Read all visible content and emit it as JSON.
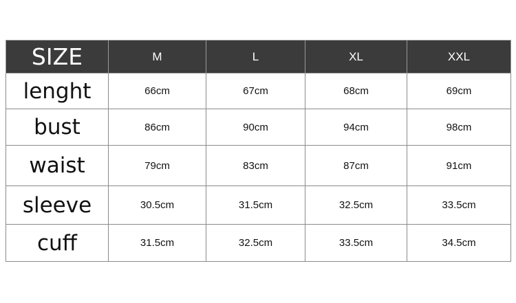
{
  "size_chart": {
    "header_label": "SIZE",
    "sizes": [
      "M",
      "L",
      "XL",
      "XXL"
    ],
    "rows": [
      {
        "label": "lenght",
        "values": [
          "66cm",
          "67cm",
          "68cm",
          "69cm"
        ]
      },
      {
        "label": "bust",
        "values": [
          "86cm",
          "90cm",
          "94cm",
          "98cm"
        ]
      },
      {
        "label": "waist",
        "values": [
          "79cm",
          "83cm",
          "87cm",
          "91cm"
        ]
      },
      {
        "label": "sleeve",
        "values": [
          "30.5cm",
          "31.5cm",
          "32.5cm",
          "33.5cm"
        ]
      },
      {
        "label": "cuff",
        "values": [
          "31.5cm",
          "32.5cm",
          "33.5cm",
          "34.5cm"
        ]
      }
    ],
    "colors": {
      "header_bg": "#3b3b3b",
      "header_text": "#ffffff",
      "border": "#8a8a8a"
    }
  }
}
